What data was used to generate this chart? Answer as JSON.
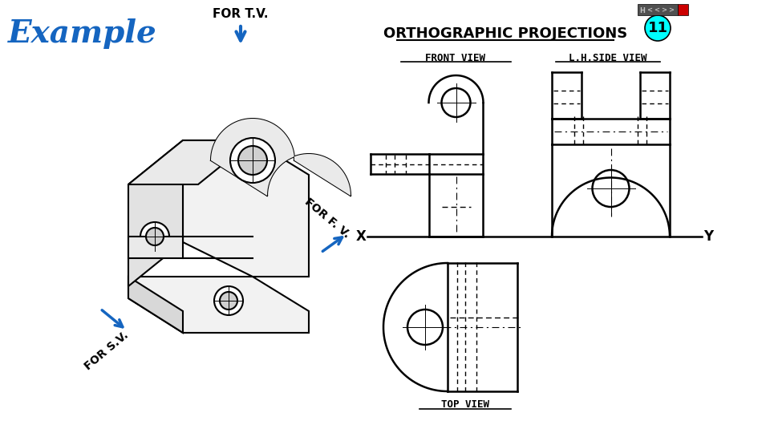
{
  "title": "ORTHOGRAPHIC PROJECTIONS",
  "example_text": "Example",
  "slide_num": "11",
  "for_tv_label": "FOR T.V.",
  "for_fv_label": "FOR F. V.",
  "for_sv_label": "FOR S.V.",
  "front_view_label": "FRONT VIEW",
  "side_view_label": "L.H.SIDE VIEW",
  "top_view_label": "TOP VIEW",
  "x_label": "X",
  "y_label": "Y",
  "bg_color": "#ffffff",
  "drawing_color": "#000000",
  "example_color": "#1565C0",
  "arrow_color": "#1565C0",
  "cyan_color": "#00FFFF"
}
